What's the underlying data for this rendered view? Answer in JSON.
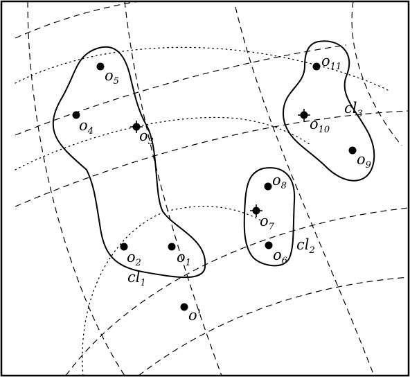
{
  "objects": [
    {
      "id": "o1",
      "base": "o",
      "sub": "1"
    },
    {
      "id": "o2",
      "base": "o",
      "sub": "2"
    },
    {
      "id": "o3",
      "base": "o",
      "sub": "3",
      "centroid": true
    },
    {
      "id": "o4",
      "base": "o",
      "sub": "4"
    },
    {
      "id": "o5",
      "base": "o",
      "sub": "5"
    },
    {
      "id": "o6",
      "base": "o",
      "sub": "6"
    },
    {
      "id": "o7",
      "base": "o",
      "sub": "7",
      "centroid": true
    },
    {
      "id": "o8",
      "base": "o",
      "sub": "8"
    },
    {
      "id": "o9",
      "base": "o",
      "sub": "9"
    },
    {
      "id": "o10",
      "base": "o",
      "sub": "10",
      "centroid": true
    },
    {
      "id": "o11",
      "base": "o",
      "sub": "11"
    },
    {
      "id": "oprime",
      "base": "o'",
      "sub": ""
    }
  ],
  "clusters": [
    {
      "id": "cl1",
      "base": "cl",
      "sub": "1"
    },
    {
      "id": "cl2",
      "base": "cl",
      "sub": "2"
    },
    {
      "id": "cl3",
      "base": "cl",
      "sub": "3"
    }
  ]
}
